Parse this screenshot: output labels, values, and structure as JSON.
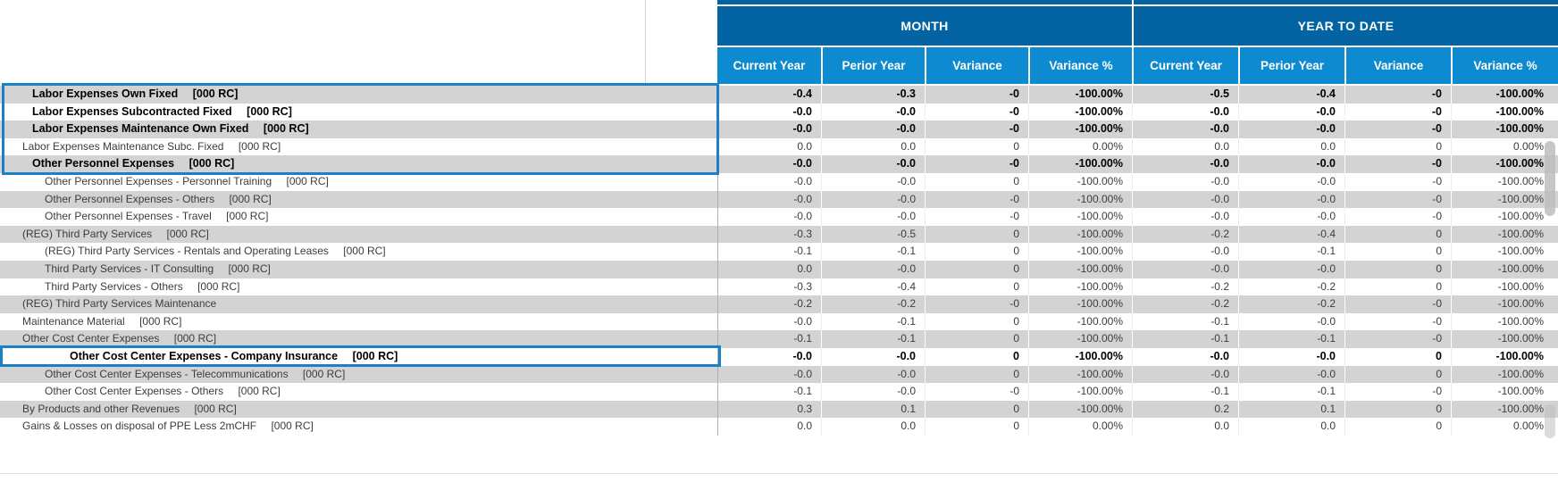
{
  "header": {
    "groups": [
      {
        "label": "MONTH"
      },
      {
        "label": "YEAR TO DATE"
      }
    ],
    "columns": [
      "Current Year",
      "Perior Year",
      "Variance",
      "Variance %",
      "Current Year",
      "Perior Year",
      "Variance",
      "Variance %"
    ]
  },
  "rows": [
    {
      "label": "Labor Expenses Own Fixed",
      "unit": "[000 RC]",
      "bold": true,
      "indent": 1,
      "values": [
        "-0.4",
        "-0.3",
        "-0",
        "-100.00%",
        "-0.5",
        "-0.4",
        "-0",
        "-100.00%"
      ]
    },
    {
      "label": "Labor Expenses Subcontracted Fixed",
      "unit": "[000 RC]",
      "bold": true,
      "indent": 1,
      "values": [
        "-0.0",
        "-0.0",
        "-0",
        "-100.00%",
        "-0.0",
        "-0.0",
        "-0",
        "-100.00%"
      ]
    },
    {
      "label": "Labor Expenses Maintenance Own Fixed",
      "unit": "[000 RC]",
      "bold": true,
      "indent": 1,
      "values": [
        "-0.0",
        "-0.0",
        "-0",
        "-100.00%",
        "-0.0",
        "-0.0",
        "-0",
        "-100.00%"
      ]
    },
    {
      "label": "Labor Expenses Maintenance Subc. Fixed",
      "unit": "[000 RC]",
      "bold": false,
      "indent": 1,
      "values": [
        "0.0",
        "0.0",
        "0",
        "0.00%",
        "0.0",
        "0.0",
        "0",
        "0.00%"
      ]
    },
    {
      "label": "Other Personnel Expenses",
      "unit": "[000 RC]",
      "bold": true,
      "indent": 1,
      "values": [
        "-0.0",
        "-0.0",
        "-0",
        "-100.00%",
        "-0.0",
        "-0.0",
        "-0",
        "-100.00%"
      ]
    },
    {
      "label": "Other Personnel Expenses - Personnel Training",
      "unit": "[000 RC]",
      "bold": false,
      "indent": 2,
      "values": [
        "-0.0",
        "-0.0",
        "0",
        "-100.00%",
        "-0.0",
        "-0.0",
        "-0",
        "-100.00%"
      ]
    },
    {
      "label": "Other Personnel Expenses - Others",
      "unit": "[000 RC]",
      "bold": false,
      "indent": 2,
      "values": [
        "-0.0",
        "-0.0",
        "-0",
        "-100.00%",
        "-0.0",
        "-0.0",
        "-0",
        "-100.00%"
      ]
    },
    {
      "label": "Other Personnel Expenses - Travel",
      "unit": "[000 RC]",
      "bold": false,
      "indent": 2,
      "values": [
        "-0.0",
        "-0.0",
        "-0",
        "-100.00%",
        "-0.0",
        "-0.0",
        "-0",
        "-100.00%"
      ]
    },
    {
      "label": "(REG) Third Party Services",
      "unit": "[000 RC]",
      "bold": false,
      "indent": 1,
      "values": [
        "-0.3",
        "-0.5",
        "0",
        "-100.00%",
        "-0.2",
        "-0.4",
        "0",
        "-100.00%"
      ]
    },
    {
      "label": "(REG) Third Party Services - Rentals and Operating Leases",
      "unit": "[000 RC]",
      "bold": false,
      "indent": 2,
      "values": [
        "-0.1",
        "-0.1",
        "0",
        "-100.00%",
        "-0.0",
        "-0.1",
        "0",
        "-100.00%"
      ]
    },
    {
      "label": "Third Party Services - IT Consulting",
      "unit": "[000 RC]",
      "bold": false,
      "indent": 2,
      "values": [
        "0.0",
        "-0.0",
        "0",
        "-100.00%",
        "-0.0",
        "-0.0",
        "0",
        "-100.00%"
      ]
    },
    {
      "label": "Third Party Services - Others",
      "unit": "[000 RC]",
      "bold": false,
      "indent": 2,
      "values": [
        "-0.3",
        "-0.4",
        "0",
        "-100.00%",
        "-0.2",
        "-0.2",
        "0",
        "-100.00%"
      ]
    },
    {
      "label": "(REG) Third Party Services Maintenance",
      "unit": "",
      "bold": false,
      "indent": 1,
      "values": [
        "-0.2",
        "-0.2",
        "-0",
        "-100.00%",
        "-0.2",
        "-0.2",
        "-0",
        "-100.00%"
      ]
    },
    {
      "label": "Maintenance Material",
      "unit": "[000 RC]",
      "bold": false,
      "indent": 1,
      "values": [
        "-0.0",
        "-0.1",
        "0",
        "-100.00%",
        "-0.1",
        "-0.0",
        "-0",
        "-100.00%"
      ]
    },
    {
      "label": "Other Cost Center Expenses",
      "unit": "[000 RC]",
      "bold": false,
      "indent": 1,
      "values": [
        "-0.1",
        "-0.1",
        "0",
        "-100.00%",
        "-0.1",
        "-0.1",
        "-0",
        "-100.00%"
      ]
    },
    {
      "label": "Other Cost Center Expenses - Company Insurance",
      "unit": "[000 RC]",
      "bold": true,
      "indent": 3,
      "values": [
        "-0.0",
        "-0.0",
        "0",
        "-100.00%",
        "-0.0",
        "-0.0",
        "0",
        "-100.00%"
      ]
    },
    {
      "label": "Other Cost Center Expenses - Telecommunications",
      "unit": "[000 RC]",
      "bold": false,
      "indent": 2,
      "values": [
        "-0.0",
        "-0.0",
        "0",
        "-100.00%",
        "-0.0",
        "-0.0",
        "0",
        "-100.00%"
      ]
    },
    {
      "label": "Other Cost Center Expenses - Others",
      "unit": "[000 RC]",
      "bold": false,
      "indent": 2,
      "values": [
        "-0.1",
        "-0.0",
        "-0",
        "-100.00%",
        "-0.1",
        "-0.1",
        "-0",
        "-100.00%"
      ]
    },
    {
      "label": "By Products and other Revenues",
      "unit": "[000 RC]",
      "bold": false,
      "indent": 1,
      "values": [
        "0.3",
        "0.1",
        "0",
        "-100.00%",
        "0.2",
        "0.1",
        "0",
        "-100.00%"
      ]
    },
    {
      "label": "Gains & Losses on disposal of PPE Less 2mCHF",
      "unit": "[000 RC]",
      "bold": false,
      "indent": 1,
      "values": [
        "0.0",
        "0.0",
        "0",
        "0.00%",
        "0.0",
        "0.0",
        "0",
        "0.00%"
      ]
    }
  ],
  "colors": {
    "header_dark": "#0463a2",
    "header_light": "#0e8ad0",
    "row_alt_gray": "#d3d3d3",
    "highlight_border": "#1b80c6"
  }
}
